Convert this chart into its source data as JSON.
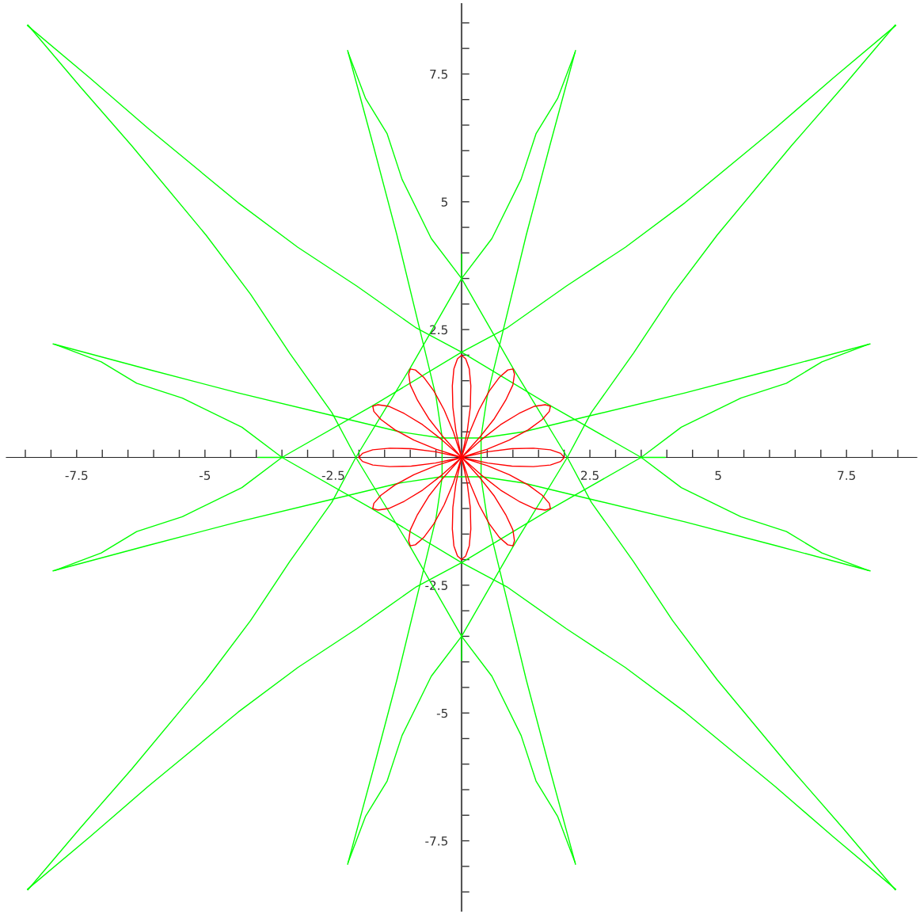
{
  "chart_data": {
    "type": "line",
    "xlim": [
      -8.87,
      8.87
    ],
    "ylim": [
      -8.87,
      8.87
    ],
    "xticks": [
      {
        "value": -8.5,
        "label": null
      },
      {
        "value": -8,
        "label": null
      },
      -7.5,
      {
        "value": -7,
        "label": null
      },
      {
        "value": -6.5,
        "label": null
      },
      {
        "value": -6,
        "label": null
      },
      {
        "value": -5.5,
        "label": null
      },
      -5,
      {
        "value": -4.5,
        "label": null
      },
      {
        "value": -4,
        "label": null
      },
      {
        "value": -3.5,
        "label": null
      },
      {
        "value": -3,
        "label": null
      },
      -2.5,
      {
        "value": -2,
        "label": null
      },
      {
        "value": -1.5,
        "label": null
      },
      {
        "value": -1,
        "label": null
      },
      {
        "value": -0.5,
        "label": null
      },
      {
        "value": 0.5,
        "label": null
      },
      {
        "value": 1,
        "label": null
      },
      {
        "value": 1.5,
        "label": null
      },
      {
        "value": 2,
        "label": null
      },
      2.5,
      {
        "value": 3,
        "label": null
      },
      {
        "value": 3.5,
        "label": null
      },
      {
        "value": 4,
        "label": null
      },
      {
        "value": 4.5,
        "label": null
      },
      5,
      {
        "value": 5.5,
        "label": null
      },
      {
        "value": 6,
        "label": null
      },
      {
        "value": 6.5,
        "label": null
      },
      {
        "value": 7,
        "label": null
      },
      7.5,
      {
        "value": 8,
        "label": null
      },
      {
        "value": 8.5,
        "label": null
      }
    ],
    "yticks": [
      {
        "value": -8.5,
        "label": null
      },
      {
        "value": -8,
        "label": null
      },
      -7.5,
      {
        "value": -7,
        "label": null
      },
      {
        "value": -6.5,
        "label": null
      },
      {
        "value": -6,
        "label": null
      },
      {
        "value": -5.5,
        "label": null
      },
      -5,
      {
        "value": -4.5,
        "label": null
      },
      {
        "value": -4,
        "label": null
      },
      {
        "value": -3.5,
        "label": null
      },
      {
        "value": -3,
        "label": null
      },
      -2.5,
      {
        "value": -2,
        "label": null
      },
      {
        "value": -1.5,
        "label": null
      },
      {
        "value": -1,
        "label": null
      },
      {
        "value": -0.5,
        "label": null
      },
      {
        "value": 0.5,
        "label": null
      },
      {
        "value": 1,
        "label": null
      },
      {
        "value": 1.5,
        "label": null
      },
      {
        "value": 2,
        "label": null
      },
      2.5,
      {
        "value": 3,
        "label": null
      },
      {
        "value": 3.5,
        "label": null
      },
      {
        "value": 4,
        "label": null
      },
      {
        "value": 4.5,
        "label": null
      },
      5,
      {
        "value": 5.5,
        "label": null
      },
      {
        "value": 6,
        "label": null
      },
      {
        "value": 6.5,
        "label": null
      },
      {
        "value": 7,
        "label": null
      },
      7.5,
      {
        "value": 8,
        "label": null
      },
      {
        "value": 8.5,
        "label": null
      }
    ],
    "series": [
      {
        "color": "#00ff00",
        "x": [
          -8.46,
          -7.25,
          -6.1,
          -4.35,
          -3.19,
          -2.04,
          -0.88,
          0,
          1.75,
          3.5,
          4.28,
          5.44,
          6.33,
          7.02,
          7.92
        ],
        "values": [
          8.45,
          7.43,
          6.43,
          4.98,
          4.11,
          3.35,
          2.53,
          2.06,
          1.0,
          0,
          -0.59,
          -1.16,
          -1.45,
          -1.87,
          -2.21
        ]
      },
      {
        "color": "#00ff00",
        "x": [
          -8.45,
          -7.43,
          -6.43,
          -4.98,
          -4.11,
          -3.35,
          -2.53,
          -2.06,
          -1.0,
          0,
          0.59,
          1.16,
          1.45,
          1.87,
          2.21
        ],
        "values": [
          -8.46,
          -7.25,
          -6.1,
          -4.35,
          -3.19,
          -2.04,
          -0.88,
          0,
          1.75,
          3.5,
          4.28,
          5.44,
          6.33,
          7.02,
          7.92
        ]
      },
      {
        "color": "#00ff00",
        "x": [
          8.46,
          7.25,
          6.1,
          4.35,
          3.19,
          2.04,
          0.88,
          0,
          -1.75,
          -3.5,
          -4.28,
          -5.44,
          -6.33,
          -7.02,
          -7.92
        ],
        "values": [
          -8.45,
          -7.43,
          -6.43,
          -4.98,
          -4.11,
          -3.35,
          -2.53,
          -2.06,
          -1.0,
          0,
          0.59,
          1.16,
          1.45,
          1.87,
          2.21
        ]
      },
      {
        "color": "#00ff00",
        "x": [
          8.45,
          7.43,
          6.43,
          4.98,
          4.11,
          3.35,
          2.53,
          2.06,
          1.0,
          0,
          -0.59,
          -1.16,
          -1.45,
          -1.87,
          -2.21
        ],
        "values": [
          8.46,
          7.25,
          6.1,
          4.35,
          3.19,
          2.04,
          0.88,
          0,
          -1.75,
          -3.5,
          -4.28,
          -5.44,
          -6.33,
          -7.02,
          -7.92
        ]
      },
      {
        "color": "#00ff00",
        "x": [
          8.46,
          7.25,
          6.1,
          4.35,
          3.19,
          2.04,
          0.88,
          0,
          -1.75,
          -3.5,
          -4.28,
          -5.44,
          -6.33,
          -7.02,
          -7.92
        ],
        "values": [
          8.45,
          7.43,
          6.43,
          4.98,
          4.11,
          3.35,
          2.53,
          2.06,
          1.0,
          0,
          -0.59,
          -1.16,
          -1.45,
          -1.87,
          -2.21
        ]
      },
      {
        "color": "#00ff00",
        "x": [
          -8.46,
          -7.25,
          -6.1,
          -4.35,
          -3.19,
          -2.04,
          -0.88,
          0,
          1.75,
          3.5,
          4.28,
          5.44,
          6.33,
          7.02,
          7.92
        ],
        "values": [
          -8.45,
          -7.43,
          -6.43,
          -4.98,
          -4.11,
          -3.35,
          -2.53,
          -2.06,
          -1.0,
          0,
          0.59,
          1.16,
          1.45,
          1.87,
          2.21
        ]
      },
      {
        "color": "#00ff00",
        "x": [
          8.45,
          7.43,
          6.43,
          4.98,
          4.11,
          3.35,
          2.53,
          2.06,
          1.0,
          0,
          -0.59,
          -1.16,
          -1.45,
          -1.87,
          -2.21
        ],
        "values": [
          -8.46,
          -7.25,
          -6.1,
          -4.35,
          -3.19,
          -2.04,
          -0.88,
          0,
          1.75,
          3.5,
          4.28,
          5.44,
          6.33,
          7.02,
          7.92
        ]
      },
      {
        "color": "#00ff00",
        "x": [
          -8.45,
          -7.43,
          -6.43,
          -4.98,
          -4.11,
          -3.35,
          -2.53,
          -2.06,
          -1.0,
          0,
          0.59,
          1.16,
          1.45,
          1.87,
          2.21
        ],
        "values": [
          8.46,
          7.25,
          6.1,
          4.35,
          3.19,
          2.04,
          0.88,
          0,
          -1.75,
          -3.5,
          -4.28,
          -5.44,
          -6.33,
          -7.02,
          -7.92
        ]
      },
      {
        "color": "#00ff00",
        "x": [
          -7.96,
          -6.1,
          -4.35,
          -2.61,
          -1.2,
          -0.4,
          0.4,
          1.2,
          2.61,
          4.35,
          6.1,
          7.96
        ],
        "values": [
          2.22,
          1.72,
          1.26,
          0.84,
          0.5,
          0.38,
          0.38,
          0.5,
          0.84,
          1.26,
          1.72,
          2.22
        ]
      },
      {
        "color": "#00ff00",
        "x": [
          -7.96,
          -6.1,
          -4.35,
          -2.61,
          -1.2,
          -0.4,
          0.4,
          1.2,
          2.61,
          4.35,
          6.1,
          7.96
        ],
        "values": [
          -2.22,
          -1.72,
          -1.26,
          -0.84,
          -0.5,
          -0.38,
          -0.38,
          -0.5,
          -0.84,
          -1.26,
          -1.72,
          -2.22
        ]
      },
      {
        "color": "#00ff00",
        "x": [
          2.22,
          1.72,
          1.26,
          0.84,
          0.5,
          0.38,
          0.38,
          0.5,
          0.84,
          1.26,
          1.72,
          2.22
        ],
        "values": [
          -7.96,
          -6.1,
          -4.35,
          -2.61,
          -1.2,
          -0.4,
          0.4,
          1.2,
          2.61,
          4.35,
          6.1,
          7.96
        ]
      },
      {
        "color": "#00ff00",
        "x": [
          -2.22,
          -1.72,
          -1.26,
          -0.84,
          -0.5,
          -0.38,
          -0.38,
          -0.5,
          -0.84,
          -1.26,
          -1.72,
          -2.22
        ],
        "values": [
          -7.96,
          -6.1,
          -4.35,
          -2.61,
          -1.2,
          -0.4,
          0.4,
          1.2,
          2.61,
          4.35,
          6.1,
          7.96
        ]
      },
      {
        "color": "#00ff00",
        "x": [
          0,
          0
        ],
        "values": [
          3.46,
          3.97
        ]
      },
      {
        "color": "#00ff00",
        "x": [
          0,
          0
        ],
        "values": [
          -3.46,
          -3.97
        ]
      },
      {
        "color": "#00ff00",
        "x": [
          3.44,
          3.97
        ],
        "values": [
          0,
          0
        ]
      },
      {
        "color": "#00ff00",
        "x": [
          -3.44,
          -3.97
        ],
        "values": [
          0,
          0
        ]
      },
      {
        "color": "#ff0000",
        "x": [
          2,
          1.93,
          1.73,
          1.4,
          0.98,
          0.51,
          0,
          0.5,
          0.93,
          1.3,
          1.57,
          1.71,
          1.73
        ],
        "values": [
          0,
          0.08,
          0.15,
          0.18,
          0.17,
          0.11,
          0,
          0.16,
          0.34,
          0.54,
          0.74,
          0.9,
          1.0
        ]
      },
      {
        "color": "#ff0000",
        "x": [
          1.73,
          1.63,
          1.42,
          1.12,
          0.76,
          0.39,
          0,
          0.35,
          0.64,
          0.86,
          1.0,
          1.03,
          1.0
        ],
        "values": [
          1.0,
          1.03,
          1.0,
          0.86,
          0.64,
          0.35,
          0,
          0.39,
          0.76,
          1.12,
          1.42,
          1.63,
          1.73
        ]
      },
      {
        "color": "#ff0000",
        "x": [
          1.0,
          0.9,
          0.74,
          0.54,
          0.34,
          0.16,
          0,
          0.11,
          0.17,
          0.18,
          0.15,
          0.08,
          0
        ],
        "values": [
          1.73,
          1.71,
          1.57,
          1.3,
          0.93,
          0.5,
          0,
          0.51,
          0.98,
          1.4,
          1.73,
          1.93,
          2
        ]
      },
      {
        "color": "#ff0000",
        "x": [
          0,
          -0.08,
          -0.15,
          -0.18,
          -0.17,
          -0.11,
          0,
          -0.16,
          -0.34,
          -0.54,
          -0.74,
          -0.9,
          -1.0
        ],
        "values": [
          2,
          1.93,
          1.73,
          1.4,
          0.98,
          0.51,
          0,
          0.5,
          0.93,
          1.3,
          1.57,
          1.71,
          1.73
        ]
      },
      {
        "color": "#ff0000",
        "x": [
          -1.0,
          -1.03,
          -1.0,
          -0.86,
          -0.64,
          -0.35,
          0,
          -0.39,
          -0.76,
          -1.12,
          -1.42,
          -1.63,
          -1.73
        ],
        "values": [
          1.73,
          1.63,
          1.42,
          1.12,
          0.76,
          0.39,
          0,
          0.35,
          0.64,
          0.86,
          1.0,
          1.03,
          1.0
        ]
      },
      {
        "color": "#ff0000",
        "x": [
          -1.73,
          -1.71,
          -1.57,
          -1.3,
          -0.93,
          -0.5,
          0,
          -0.51,
          -0.98,
          -1.4,
          -1.73,
          -1.93,
          -2
        ],
        "values": [
          1.0,
          0.9,
          0.74,
          0.54,
          0.34,
          0.16,
          0,
          0.11,
          0.17,
          0.18,
          0.15,
          0.08,
          0
        ]
      },
      {
        "color": "#ff0000",
        "x": [
          -2,
          -1.93,
          -1.73,
          -1.4,
          -0.98,
          -0.51,
          0,
          -0.5,
          -0.93,
          -1.3,
          -1.57,
          -1.71,
          -1.73
        ],
        "values": [
          0,
          -0.08,
          -0.15,
          -0.18,
          -0.17,
          -0.11,
          0,
          -0.16,
          -0.34,
          -0.54,
          -0.74,
          -0.9,
          -1.0
        ]
      },
      {
        "color": "#ff0000",
        "x": [
          -1.73,
          -1.63,
          -1.42,
          -1.12,
          -0.76,
          -0.39,
          0,
          -0.35,
          -0.64,
          -0.86,
          -1.0,
          -1.03,
          -1.0
        ],
        "values": [
          -1.0,
          -1.03,
          -1.0,
          -0.86,
          -0.64,
          -0.35,
          0,
          -0.39,
          -0.76,
          -1.12,
          -1.42,
          -1.63,
          -1.73
        ]
      },
      {
        "color": "#ff0000",
        "x": [
          -1.0,
          -0.9,
          -0.74,
          -0.54,
          -0.34,
          -0.16,
          0,
          -0.11,
          -0.17,
          -0.18,
          -0.15,
          -0.08,
          0
        ],
        "values": [
          -1.73,
          -1.71,
          -1.57,
          -1.3,
          -0.93,
          -0.5,
          0,
          -0.51,
          -0.98,
          -1.4,
          -1.73,
          -1.93,
          -2
        ]
      },
      {
        "color": "#ff0000",
        "x": [
          0,
          0.08,
          0.15,
          0.18,
          0.17,
          0.11,
          0,
          0.16,
          0.34,
          0.54,
          0.74,
          0.9,
          1.0
        ],
        "values": [
          -2,
          -1.93,
          -1.73,
          -1.4,
          -0.98,
          -0.51,
          0,
          -0.5,
          -0.93,
          -1.3,
          -1.57,
          -1.71,
          -1.73
        ]
      },
      {
        "color": "#ff0000",
        "x": [
          1.0,
          1.03,
          1.0,
          0.86,
          0.64,
          0.35,
          0,
          0.39,
          0.76,
          1.12,
          1.42,
          1.63,
          1.73
        ],
        "values": [
          -1.73,
          -1.63,
          -1.42,
          -1.12,
          -0.76,
          -0.39,
          0,
          -0.35,
          -0.64,
          -0.86,
          -1.0,
          -1.03,
          -1.0
        ]
      },
      {
        "color": "#ff0000",
        "x": [
          1.73,
          1.71,
          1.57,
          1.3,
          0.93,
          0.5,
          0,
          0.51,
          0.98,
          1.4,
          1.73,
          1.93,
          2
        ],
        "values": [
          -1.0,
          -0.9,
          -0.74,
          -0.54,
          -0.34,
          -0.16,
          0,
          -0.11,
          -0.17,
          -0.18,
          -0.15,
          -0.08,
          0
        ]
      }
    ]
  }
}
